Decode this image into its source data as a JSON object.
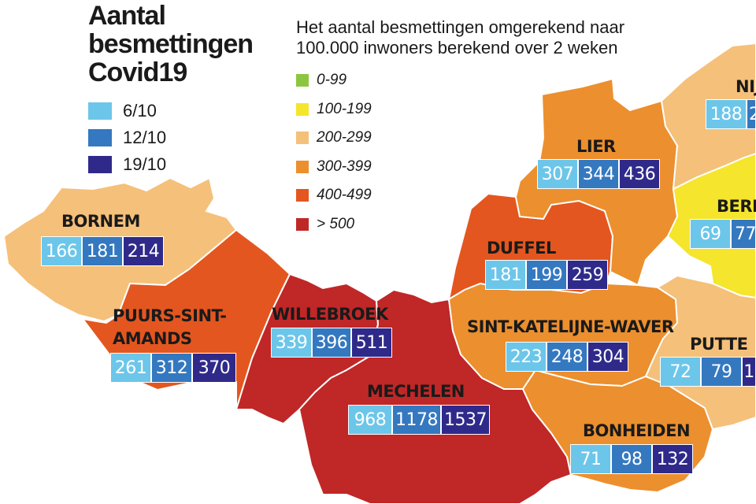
{
  "title_lines": [
    "Aantal",
    "besmettingen",
    "Covid19"
  ],
  "date_legend": [
    {
      "label": "6/10",
      "color": "#6cc6ea"
    },
    {
      "label": "12/10",
      "color": "#3478c0"
    },
    {
      "label": "19/10",
      "color": "#2f2a8a"
    }
  ],
  "subtitle_lines": [
    "Het aantal besmettingen omgerekend naar",
    "100.000 inwoners berekend over 2 weken"
  ],
  "range_legend": [
    {
      "label": "0-99",
      "color": "#8cc63f"
    },
    {
      "label": "100-199",
      "color": "#f5e52c"
    },
    {
      "label": "200-299",
      "color": "#f5c07a"
    },
    {
      "label": "300-399",
      "color": "#ec8f2e"
    },
    {
      "label": "400-499",
      "color": "#e4561f"
    },
    {
      "label": "> 500",
      "color": "#c02727"
    }
  ],
  "municipalities": {
    "bornem": {
      "name": "BORNEM",
      "values": [
        "166",
        "181",
        "214"
      ]
    },
    "puurs": {
      "name_lines": [
        "PUURS-SINT-",
        "AMANDS"
      ],
      "values": [
        "261",
        "312",
        "370"
      ]
    },
    "willebroek": {
      "name": "WILLEBROEK",
      "values": [
        "339",
        "396",
        "511"
      ]
    },
    "mechelen": {
      "name": "MECHELEN",
      "values": [
        "968",
        "1178",
        "1537"
      ]
    },
    "lier": {
      "name": "LIER",
      "values": [
        "307",
        "344",
        "436"
      ]
    },
    "duffel": {
      "name": "DUFFEL",
      "values": [
        "181",
        "199",
        "259"
      ]
    },
    "sintkatelijne": {
      "name": "SINT-KATELIJNE-WAVER",
      "values": [
        "223",
        "248",
        "304"
      ]
    },
    "bonheiden": {
      "name": "BONHEIDEN",
      "values": [
        "71",
        "98",
        "132"
      ]
    },
    "putte": {
      "name": "PUTTE",
      "values": [
        "72",
        "79",
        "1"
      ]
    },
    "berlaar": {
      "name": "BERL",
      "values": [
        "69",
        "77"
      ]
    },
    "nijlen": {
      "name": "NIJ",
      "values": [
        "188",
        "2"
      ]
    }
  }
}
